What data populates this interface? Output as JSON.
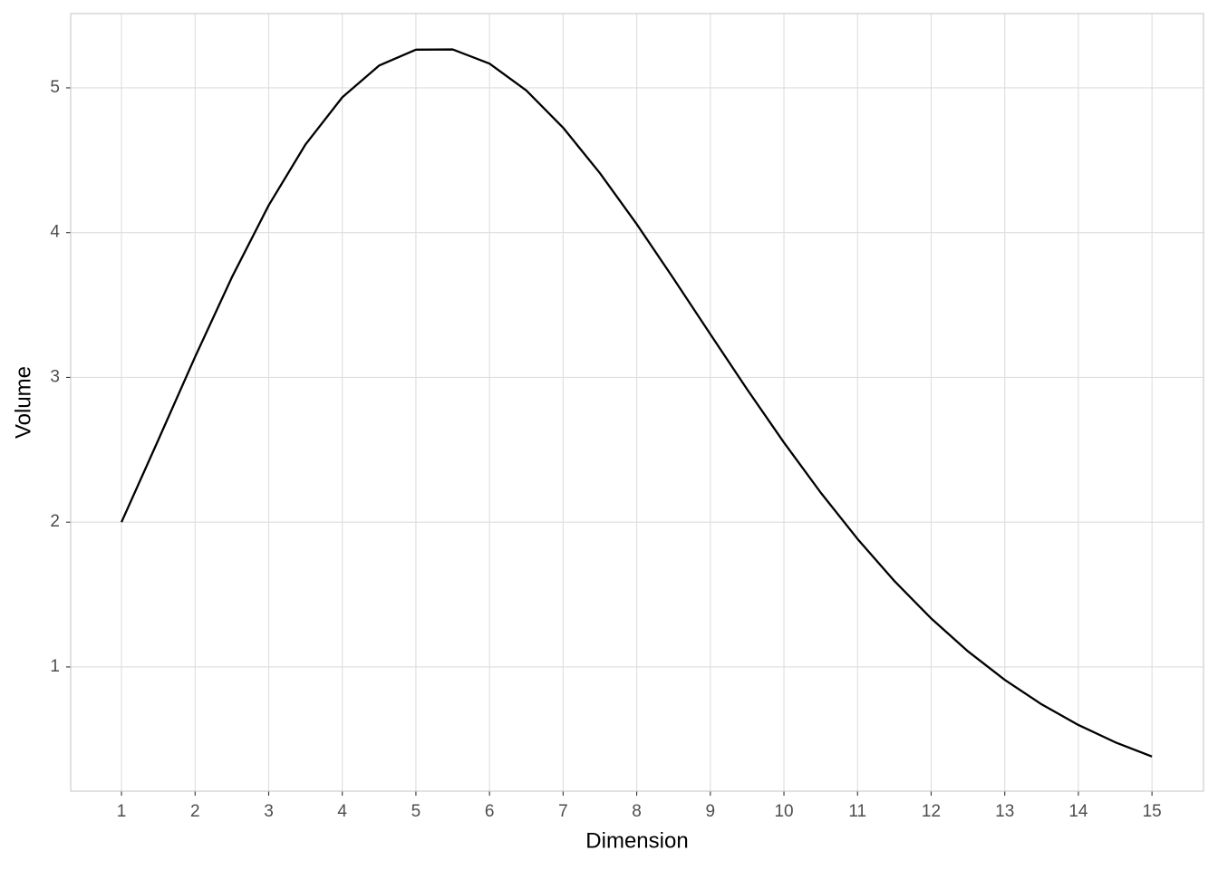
{
  "chart_data": {
    "type": "line",
    "x_label": "Dimension",
    "y_label": "Volume",
    "x": [
      1,
      1.5,
      2,
      2.5,
      3,
      3.5,
      4,
      4.5,
      5,
      5.5,
      6,
      6.5,
      7,
      7.5,
      8,
      8.5,
      9,
      9.5,
      10,
      10.5,
      11,
      11.5,
      12,
      12.5,
      13,
      13.5,
      14,
      14.5,
      15
    ],
    "series": [
      {
        "color": "#000000",
        "values": [
          2,
          2.5675,
          3.1416,
          3.6916,
          4.1888,
          4.6091,
          4.9348,
          5.154,
          5.2638,
          5.2653,
          5.1677,
          4.982,
          4.7248,
          4.4109,
          4.0587,
          3.6828,
          3.2985,
          2.9173,
          2.5502,
          2.2038,
          1.8841,
          1.5939,
          1.3353,
          1.1078,
          0.9106,
          0.7419,
          0.5993,
          0.48,
          0.3814
        ]
      }
    ],
    "xlim": [
      0.31,
      15.7
    ],
    "ylim": [
      0.142,
      5.513
    ],
    "xticks": [
      1,
      2,
      3,
      4,
      5,
      6,
      7,
      8,
      9,
      10,
      11,
      12,
      13,
      14,
      15
    ],
    "yticks": [
      1,
      2,
      3,
      4,
      5
    ],
    "grid": true
  }
}
